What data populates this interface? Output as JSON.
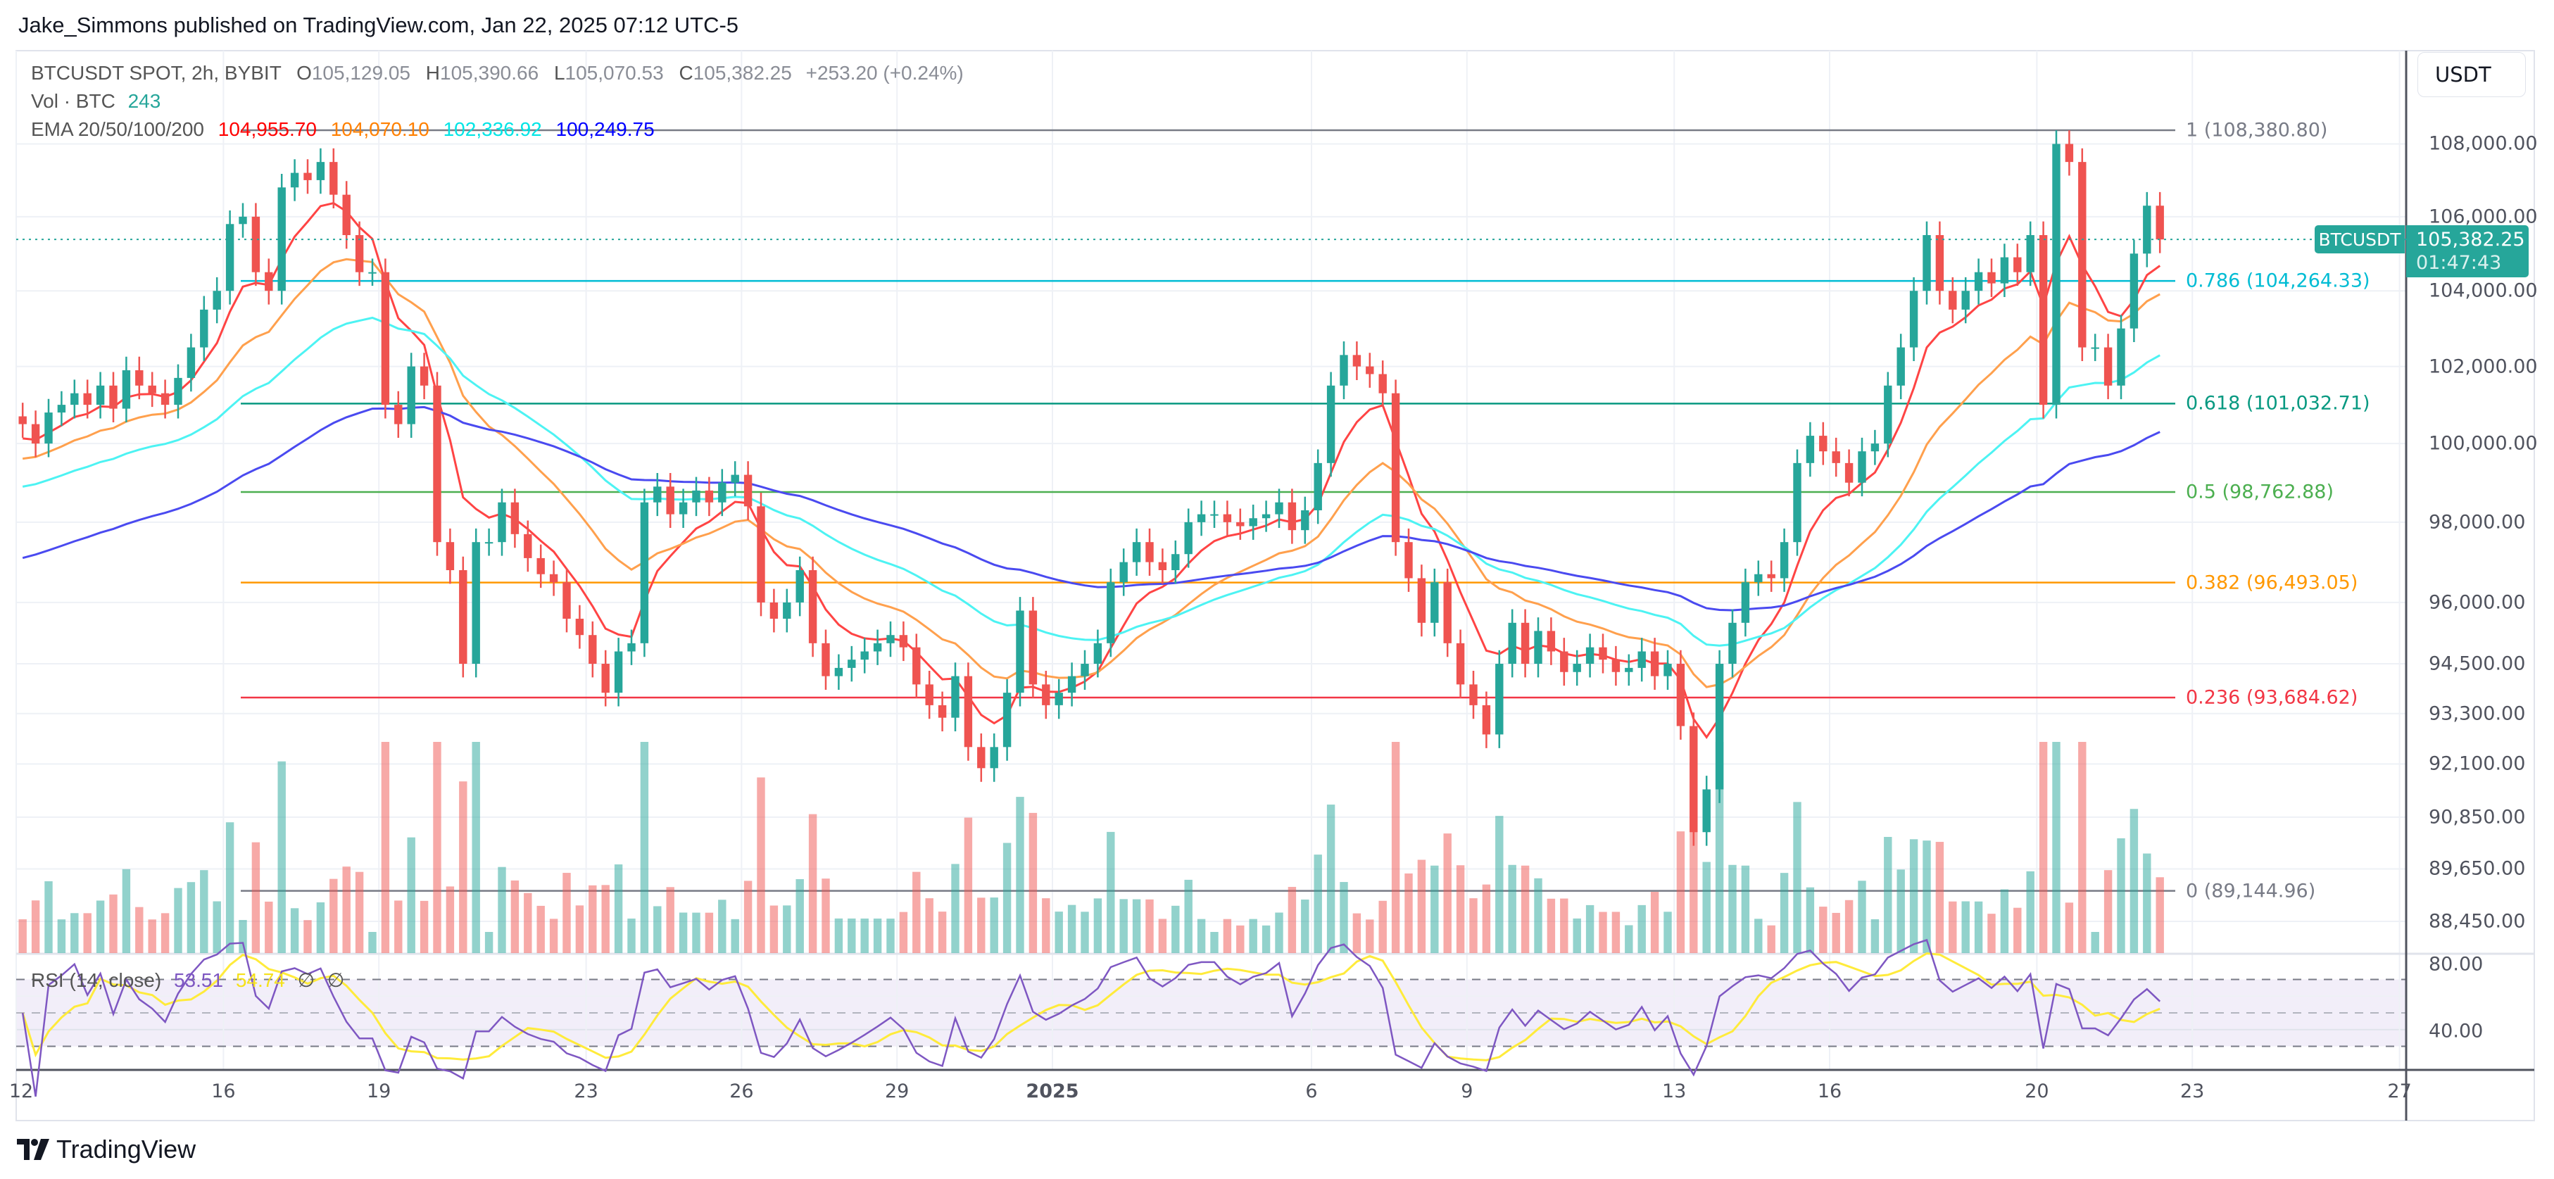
{
  "header": {
    "publisher_line": "Jake_Simmons published on TradingView.com, Jan 22, 2025 07:12 UTC-5"
  },
  "legend": {
    "symbol": "BTCUSDT SPOT, 2h, BYBIT",
    "o_label": "O",
    "open": "105,129.05",
    "h_label": "H",
    "high": "105,390.66",
    "l_label": "L",
    "low": "105,070.53",
    "c_label": "C",
    "close": "105,382.25",
    "change": "+253.20 (+0.24%)",
    "vol_label": "Vol · BTC",
    "vol_value": "243",
    "ema_label": "EMA 20/50/100/200",
    "ema_values": [
      "104,955.70",
      "104,070.10",
      "102,336.92",
      "100,249.75"
    ],
    "ema_colors": [
      "#ff0000",
      "#ff8000",
      "#00ffff",
      "#0000ff"
    ],
    "rsi_label": "RSI (14, close)",
    "rsi_value": "53.51",
    "rsi_ma_value": "54.74",
    "rsi_extra": [
      "∅",
      "∅"
    ]
  },
  "price_axis": {
    "currency_button": "USDT",
    "labels": [
      "108,000.00",
      "106,000.00",
      "104,000.00",
      "102,000.00",
      "100,000.00",
      "98,000.00",
      "96,000.00",
      "94,500.00",
      "93,300.00",
      "92,100.00",
      "90,850.00",
      "89,650.00",
      "88,450.00"
    ],
    "scale": "log",
    "rsi_labels": [
      "80.00",
      "40.00"
    ]
  },
  "last_price_tag": {
    "symbol": "BTCUSDT",
    "price": "105,382.25",
    "countdown": "01:47:43",
    "color": "#26a69a"
  },
  "fib_levels": [
    {
      "text": "1 (108,380.80)",
      "value": 108380.8,
      "color": "#787b86"
    },
    {
      "text": "0.786 (104,264.33)",
      "value": 104264.33,
      "color": "#00bcd4"
    },
    {
      "text": "0.618 (101,032.71)",
      "value": 101032.71,
      "color": "#089981"
    },
    {
      "text": "0.5 (98,762.88)",
      "value": 98762.88,
      "color": "#4caf50"
    },
    {
      "text": "0.382 (96,493.05)",
      "value": 96493.05,
      "color": "#ff9800"
    },
    {
      "text": "0.236 (93,684.62)",
      "value": 93684.62,
      "color": "#f23645"
    },
    {
      "text": "0 (89,144.96)",
      "value": 89144.96,
      "color": "#787b86"
    }
  ],
  "time_axis": [
    {
      "label": "12",
      "date": "2024-12-12"
    },
    {
      "label": "16",
      "date": "2024-12-16"
    },
    {
      "label": "19",
      "date": "2024-12-19"
    },
    {
      "label": "23",
      "date": "2024-12-23"
    },
    {
      "label": "26",
      "date": "2024-12-26"
    },
    {
      "label": "29",
      "date": "2024-12-29"
    },
    {
      "label": "2025",
      "date": "2025-01-01",
      "bold": true
    },
    {
      "label": "6",
      "date": "2025-01-06"
    },
    {
      "label": "9",
      "date": "2025-01-09"
    },
    {
      "label": "13",
      "date": "2025-01-13"
    },
    {
      "label": "16",
      "date": "2025-01-16"
    },
    {
      "label": "20",
      "date": "2025-01-20"
    },
    {
      "label": "23",
      "date": "2025-01-23"
    },
    {
      "label": "27",
      "date": "2025-01-27"
    }
  ],
  "chart_data": {
    "type": "candlestick",
    "symbol": "BTCUSDT",
    "ylim": [
      88000,
      109800
    ],
    "y_scale": "log",
    "colors": {
      "up": "#26a69a",
      "down": "#ef5350",
      "rsi": "#7e57c2",
      "rsi_ma": "#ffeb3b"
    },
    "ema_start": [
      100000,
      99500,
      98800,
      97000
    ],
    "closes_by_day": [
      {
        "date": "2024-12-12",
        "closes": [
          100500,
          100000,
          100800,
          101000
        ]
      },
      {
        "date": "2024-12-13",
        "closes": [
          101300,
          101000,
          101500,
          100900
        ]
      },
      {
        "date": "2024-12-14",
        "closes": [
          101900,
          101500,
          101300,
          101000
        ]
      },
      {
        "date": "2024-12-15",
        "closes": [
          101700,
          102500,
          103500,
          104000
        ]
      },
      {
        "date": "2024-12-16",
        "closes": [
          105800,
          106000,
          104500,
          104000
        ]
      },
      {
        "date": "2024-12-17",
        "closes": [
          106800,
          107200,
          107000,
          107500
        ]
      },
      {
        "date": "2024-12-18",
        "closes": [
          106600,
          105500,
          104500,
          104500
        ]
      },
      {
        "date": "2024-12-19",
        "closes": [
          101000,
          100500,
          102000,
          101500
        ]
      },
      {
        "date": "2024-12-20",
        "closes": [
          97500,
          96800,
          94500,
          97500
        ]
      },
      {
        "date": "2024-12-21",
        "closes": [
          97500,
          98500,
          97700,
          97100
        ]
      },
      {
        "date": "2024-12-22",
        "closes": [
          96700,
          96500,
          95600,
          95200
        ]
      },
      {
        "date": "2024-12-23",
        "closes": [
          94500,
          93800,
          94800,
          95000
        ]
      },
      {
        "date": "2024-12-24",
        "closes": [
          98500,
          98900,
          98200,
          98500
        ]
      },
      {
        "date": "2024-12-25",
        "closes": [
          98800,
          98500,
          99000,
          99200
        ]
      },
      {
        "date": "2024-12-26",
        "closes": [
          98400,
          96000,
          95600,
          96000
        ]
      },
      {
        "date": "2024-12-27",
        "closes": [
          96800,
          95000,
          94200,
          94400
        ]
      },
      {
        "date": "2024-12-28",
        "closes": [
          94600,
          94800,
          95000,
          95200
        ]
      },
      {
        "date": "2024-12-29",
        "closes": [
          94900,
          94000,
          93500,
          93200
        ]
      },
      {
        "date": "2024-12-30",
        "closes": [
          94200,
          92500,
          92000,
          92500
        ]
      },
      {
        "date": "2024-12-31",
        "closes": [
          93800,
          95800,
          94000,
          93500
        ]
      },
      {
        "date": "2025-01-01",
        "closes": [
          93800,
          94200,
          94500,
          95000
        ]
      },
      {
        "date": "2025-01-02",
        "closes": [
          96500,
          97000,
          97500,
          97000
        ]
      },
      {
        "date": "2025-01-03",
        "closes": [
          96800,
          97200,
          98000,
          98200
        ]
      },
      {
        "date": "2025-01-04",
        "closes": [
          98200,
          98000,
          97900,
          98100
        ]
      },
      {
        "date": "2025-01-05",
        "closes": [
          98200,
          98500,
          97800,
          98300
        ]
      },
      {
        "date": "2025-01-06",
        "closes": [
          99500,
          101500,
          102300,
          102000
        ]
      },
      {
        "date": "2025-01-07",
        "closes": [
          101800,
          101300,
          97500,
          96600
        ]
      },
      {
        "date": "2025-01-08",
        "closes": [
          95500,
          96500,
          95000,
          94000
        ]
      },
      {
        "date": "2025-01-09",
        "closes": [
          93500,
          92800,
          94500,
          95500
        ]
      },
      {
        "date": "2025-01-10",
        "closes": [
          94500,
          95300,
          94800,
          94300
        ]
      },
      {
        "date": "2025-01-11",
        "closes": [
          94500,
          94900,
          94600,
          94300
        ]
      },
      {
        "date": "2025-01-12",
        "closes": [
          94400,
          94800,
          94200,
          94500
        ]
      },
      {
        "date": "2025-01-13",
        "closes": [
          93000,
          90500,
          91500,
          94500
        ]
      },
      {
        "date": "2025-01-14",
        "closes": [
          95500,
          96500,
          96700,
          96600
        ]
      },
      {
        "date": "2025-01-15",
        "closes": [
          97500,
          99500,
          100200,
          99800
        ]
      },
      {
        "date": "2025-01-16",
        "closes": [
          99500,
          99000,
          99800,
          100000
        ]
      },
      {
        "date": "2025-01-17",
        "closes": [
          101500,
          102500,
          104000,
          105500
        ]
      },
      {
        "date": "2025-01-18",
        "closes": [
          104000,
          103500,
          104000,
          104500
        ]
      },
      {
        "date": "2025-01-19",
        "closes": [
          104200,
          104900,
          104500,
          105500
        ]
      },
      {
        "date": "2025-01-20",
        "closes": [
          101000,
          108000,
          107500,
          102500
        ]
      },
      {
        "date": "2025-01-21",
        "closes": [
          102500,
          101500,
          103000,
          105000
        ]
      },
      {
        "date": "2025-01-22",
        "closes": [
          106300,
          105382.25
        ]
      }
    ]
  },
  "footer": {
    "logo_text": "TradingView"
  }
}
